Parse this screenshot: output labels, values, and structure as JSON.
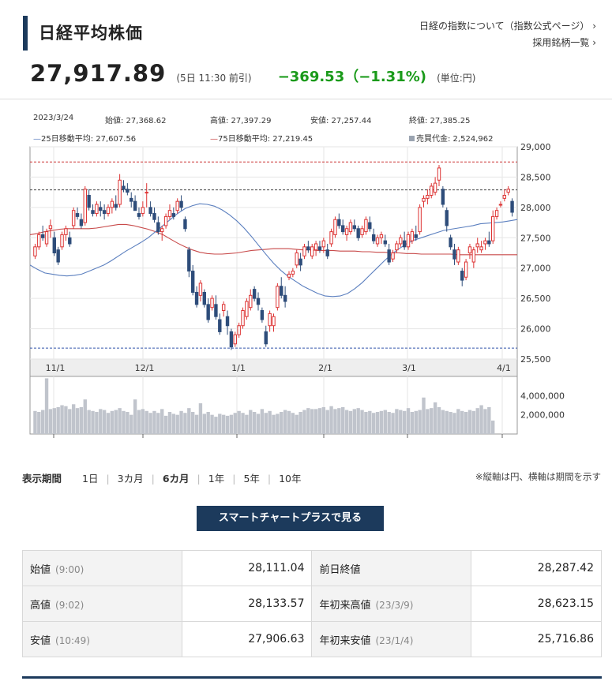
{
  "header": {
    "title": "日経平均株価",
    "link_index": "日経の指数について（指数公式ページ）",
    "link_constituents": "採用銘柄一覧",
    "price": "27,917.89",
    "price_time": "(5日 11:30 前引)",
    "change": "−369.53（−1.31%)",
    "unit": "(単位:円)"
  },
  "chart_info": {
    "date": "2023/3/24",
    "open": "始値: 27,368.62",
    "high": "高値: 27,397.29",
    "low": "安値: 27,257.44",
    "close": "終値: 27,385.25",
    "ma25": "25日移動平均: 27,607.56",
    "ma75": "75日移動平均: 27,219.45",
    "volume": "売買代金: 2,524,962"
  },
  "chart_data": {
    "type": "candlestick",
    "y_ticks": [
      "29,000",
      "28,500",
      "28,000",
      "27,500",
      "27,000",
      "26,500",
      "26,000",
      "25,500"
    ],
    "y_range": [
      25500,
      29000
    ],
    "x_ticks": [
      "11/1",
      "12/1",
      "1/1",
      "2/1",
      "3/1",
      "4/1"
    ],
    "vol_ticks": [
      "4,000,000",
      "2,000,000"
    ],
    "vol_range": [
      0,
      6000000
    ],
    "ref_lines": [
      28750,
      28290,
      25680
    ],
    "colors": {
      "up": "#d33",
      "down": "#2e4d7a",
      "ma25": "#5b7fbf",
      "ma75": "#c84a4a",
      "volume": "#c0c4cc",
      "ref_red": "#c33",
      "ref_dark": "#444",
      "ref_blue": "#3355aa"
    },
    "candles": [
      [
        27200,
        27400,
        27150,
        27350
      ],
      [
        27350,
        27600,
        27300,
        27550
      ],
      [
        27550,
        27700,
        27450,
        27500
      ],
      [
        27400,
        27650,
        27350,
        27600
      ],
      [
        27650,
        27800,
        27500,
        27700
      ],
      [
        27500,
        27600,
        27200,
        27250
      ],
      [
        27300,
        27350,
        27050,
        27100
      ],
      [
        27350,
        27600,
        27300,
        27550
      ],
      [
        27550,
        27700,
        27450,
        27650
      ],
      [
        27500,
        27600,
        27350,
        27400
      ],
      [
        27700,
        28000,
        27650,
        27950
      ],
      [
        27900,
        28000,
        27800,
        27850
      ],
      [
        27800,
        27900,
        27650,
        27700
      ],
      [
        27750,
        28350,
        27700,
        28300
      ],
      [
        28200,
        28300,
        27950,
        28000
      ],
      [
        27950,
        28050,
        27850,
        27900
      ],
      [
        27900,
        28100,
        27850,
        28050
      ],
      [
        28000,
        28100,
        27850,
        27950
      ],
      [
        27950,
        28050,
        27800,
        27900
      ],
      [
        27900,
        28050,
        27850,
        28000
      ],
      [
        28000,
        28150,
        27900,
        28100
      ],
      [
        28050,
        28200,
        27950,
        28000
      ],
      [
        28050,
        28550,
        28000,
        28450
      ],
      [
        28350,
        28450,
        28250,
        28300
      ],
      [
        28300,
        28400,
        28200,
        28250
      ],
      [
        28150,
        28250,
        28000,
        28100
      ],
      [
        28100,
        28200,
        27950,
        27950
      ],
      [
        27900,
        28000,
        27800,
        27850
      ],
      [
        27900,
        28100,
        27850,
        28000
      ],
      [
        28250,
        28400,
        28000,
        28250
      ],
      [
        28000,
        28100,
        27850,
        27900
      ],
      [
        27900,
        28000,
        27750,
        27800
      ],
      [
        27750,
        27850,
        27550,
        27600
      ],
      [
        27600,
        27700,
        27450,
        27650
      ],
      [
        27700,
        27900,
        27650,
        27850
      ],
      [
        27850,
        28050,
        27800,
        27950
      ],
      [
        27900,
        28000,
        27800,
        27850
      ],
      [
        27950,
        28150,
        27900,
        28100
      ],
      [
        28100,
        28200,
        27950,
        28000
      ],
      [
        27800,
        27850,
        27600,
        27650
      ],
      [
        27300,
        27350,
        26850,
        26950
      ],
      [
        26950,
        27050,
        26550,
        26600
      ],
      [
        26600,
        26700,
        26350,
        26400
      ],
      [
        26550,
        26800,
        26450,
        26750
      ],
      [
        26600,
        26650,
        26350,
        26400
      ],
      [
        26400,
        26500,
        26100,
        26150
      ],
      [
        26350,
        26550,
        26300,
        26500
      ],
      [
        26400,
        26550,
        26150,
        26200
      ],
      [
        26150,
        26250,
        25900,
        25950
      ],
      [
        26300,
        26450,
        26200,
        26400
      ],
      [
        26200,
        26300,
        25900,
        26050
      ],
      [
        25950,
        26000,
        25650,
        25700
      ],
      [
        25750,
        25950,
        25700,
        25900
      ],
      [
        25900,
        26100,
        25850,
        26050
      ],
      [
        26050,
        26350,
        26000,
        26300
      ],
      [
        26200,
        26500,
        26150,
        26450
      ],
      [
        26350,
        26650,
        26300,
        26550
      ],
      [
        26650,
        26700,
        26450,
        26500
      ],
      [
        26500,
        26600,
        26300,
        26400
      ],
      [
        26300,
        26350,
        26100,
        26150
      ],
      [
        25950,
        26050,
        25700,
        25750
      ],
      [
        26050,
        26300,
        25950,
        26250
      ],
      [
        26050,
        26250,
        25950,
        26200
      ],
      [
        26350,
        26750,
        26300,
        26700
      ],
      [
        26700,
        26850,
        26500,
        26550
      ],
      [
        26550,
        26700,
        26350,
        26450
      ],
      [
        26850,
        26950,
        26800,
        26900
      ],
      [
        26900,
        27000,
        26850,
        26950
      ],
      [
        27050,
        27300,
        27000,
        27250
      ],
      [
        27150,
        27250,
        26950,
        27050
      ],
      [
        27200,
        27400,
        27150,
        27350
      ],
      [
        27350,
        27450,
        27250,
        27300
      ],
      [
        27200,
        27400,
        27150,
        27350
      ],
      [
        27300,
        27450,
        27200,
        27400
      ],
      [
        27350,
        27450,
        27250,
        27300
      ],
      [
        27350,
        27500,
        27250,
        27450
      ],
      [
        27300,
        27400,
        27150,
        27200
      ],
      [
        27400,
        27650,
        27350,
        27600
      ],
      [
        27550,
        27850,
        27500,
        27800
      ],
      [
        27800,
        27900,
        27650,
        27700
      ],
      [
        27700,
        27800,
        27550,
        27600
      ],
      [
        27550,
        27700,
        27450,
        27650
      ],
      [
        27600,
        27800,
        27550,
        27750
      ],
      [
        27700,
        27800,
        27600,
        27650
      ],
      [
        27650,
        27700,
        27450,
        27500
      ],
      [
        27550,
        27700,
        27500,
        27650
      ],
      [
        27600,
        27850,
        27550,
        27800
      ],
      [
        27750,
        27850,
        27600,
        27650
      ],
      [
        27550,
        27650,
        27400,
        27450
      ],
      [
        27400,
        27550,
        27350,
        27500
      ],
      [
        27500,
        27600,
        27400,
        27550
      ],
      [
        27450,
        27550,
        27350,
        27400
      ],
      [
        27300,
        27400,
        27050,
        27100
      ],
      [
        27150,
        27300,
        27100,
        27250
      ],
      [
        27300,
        27450,
        27250,
        27400
      ],
      [
        27400,
        27550,
        27350,
        27500
      ],
      [
        27450,
        27600,
        27300,
        27350
      ],
      [
        27350,
        27600,
        27300,
        27550
      ],
      [
        27450,
        27650,
        27400,
        27600
      ],
      [
        27550,
        27700,
        27450,
        27500
      ],
      [
        27600,
        28050,
        27550,
        28000
      ],
      [
        28100,
        28200,
        28000,
        28150
      ],
      [
        28150,
        28300,
        28050,
        28200
      ],
      [
        28200,
        28400,
        28150,
        28350
      ],
      [
        28250,
        28500,
        28200,
        28400
      ],
      [
        28450,
        28700,
        28350,
        28650
      ],
      [
        28300,
        28350,
        28000,
        28050
      ],
      [
        27950,
        28000,
        27600,
        27700
      ],
      [
        27500,
        27550,
        27300,
        27350
      ],
      [
        27300,
        27400,
        27050,
        27150
      ],
      [
        27100,
        27350,
        27050,
        27300
      ],
      [
        26950,
        27000,
        26700,
        26800
      ],
      [
        26850,
        27150,
        26800,
        27100
      ],
      [
        27250,
        27400,
        27150,
        27350
      ],
      [
        27100,
        27350,
        27000,
        27300
      ],
      [
        27350,
        27500,
        27250,
        27400
      ],
      [
        27300,
        27450,
        27250,
        27350
      ],
      [
        27400,
        27500,
        27300,
        27450
      ],
      [
        27450,
        27600,
        27350,
        27400
      ],
      [
        27450,
        27950,
        27400,
        27850
      ],
      [
        27850,
        28000,
        27800,
        27950
      ],
      [
        28050,
        28100,
        28000,
        28050
      ],
      [
        28150,
        28300,
        28100,
        28200
      ],
      [
        28250,
        28350,
        28200,
        28300
      ],
      [
        28100,
        28150,
        27850,
        27920
      ]
    ],
    "ma25": [
      27050,
      26980,
      26920,
      26900,
      26880,
      26870,
      26880,
      26900,
      26950,
      27000,
      27050,
      27120,
      27200,
      27280,
      27350,
      27420,
      27500,
      27600,
      27700,
      27800,
      27900,
      27980,
      28030,
      28060,
      28050,
      28020,
      27960,
      27880,
      27780,
      27660,
      27520,
      27370,
      27220,
      27080,
      26960,
      26860,
      26780,
      26700,
      26640,
      26580,
      26540,
      26530,
      26540,
      26580,
      26660,
      26760,
      26880,
      27000,
      27120,
      27230,
      27320,
      27400,
      27460,
      27500,
      27540,
      27580,
      27620,
      27640,
      27660,
      27680,
      27700,
      27730,
      27740,
      27750,
      27760,
      27780,
      27800
    ],
    "ma75": [
      27550,
      27570,
      27600,
      27620,
      27640,
      27650,
      27650,
      27650,
      27650,
      27660,
      27680,
      27700,
      27720,
      27720,
      27700,
      27670,
      27640,
      27600,
      27550,
      27480,
      27410,
      27350,
      27300,
      27260,
      27240,
      27230,
      27230,
      27240,
      27250,
      27270,
      27290,
      27300,
      27310,
      27320,
      27320,
      27320,
      27310,
      27300,
      27300,
      27290,
      27290,
      27290,
      27280,
      27280,
      27280,
      27270,
      27270,
      27260,
      27260,
      27250,
      27250,
      27240,
      27240,
      27230,
      27230,
      27230,
      27230,
      27230,
      27220,
      27220,
      27220,
      27220,
      27220,
      27220,
      27220,
      27220,
      27220
    ],
    "volume": [
      2400000,
      2300000,
      2500000,
      5800000,
      2600000,
      2700000,
      2800000,
      3000000,
      2900000,
      2600000,
      3100000,
      2700000,
      2800000,
      3600000,
      2500000,
      2400000,
      2300000,
      2600000,
      2500000,
      2200000,
      2400000,
      2500000,
      2700000,
      2400000,
      2300000,
      2000000,
      3600000,
      2500000,
      2600000,
      2400000,
      2200000,
      2400000,
      2200000,
      2600000,
      1900000,
      2300000,
      2100000,
      2000000,
      2400000,
      2200000,
      2700000,
      2300000,
      2000000,
      3200000,
      2100000,
      2300000,
      2000000,
      1800000,
      2100000,
      2000000,
      1900000,
      2000000,
      2200000,
      2400000,
      2200000,
      2000000,
      2500000,
      2300000,
      2100000,
      2600000,
      2200000,
      2400000,
      2000000,
      2100000,
      2300000,
      2500000,
      2400000,
      2200000,
      2000000,
      2300000,
      2500000,
      2700000,
      2600000,
      2600000,
      2700000,
      2800000,
      2500000,
      2900000,
      2600000,
      2700000,
      2800000,
      2500000,
      2400000,
      2600000,
      2700000,
      2500000,
      2300000,
      2400000,
      2200000,
      2300000,
      2400000,
      2500000,
      2300000,
      2200000,
      2600000,
      2500000,
      2400000,
      2700000,
      2300000,
      2400000,
      2500000,
      3800000,
      2600000,
      2700000,
      3300000,
      2800000,
      2500000,
      2400000,
      2300000,
      2200000,
      2600000,
      2400000,
      2300000,
      2500000,
      2400000,
      2700000,
      3000000,
      2600000,
      2800000,
      1400000
    ]
  },
  "period": {
    "label": "表示期間",
    "options": [
      "1日",
      "3カ月",
      "6カ月",
      "1年",
      "5年",
      "10年"
    ],
    "active": "6カ月",
    "note": "※縦軸は円、横軸は期間を示す"
  },
  "smart_button": "スマートチャートプラスで見る",
  "stats": [
    {
      "k": "始値",
      "sub": "(9:00)",
      "v": "28,111.04",
      "k2": "前日終値",
      "sub2": "",
      "v2": "28,287.42"
    },
    {
      "k": "高値",
      "sub": "(9:02)",
      "v": "28,133.57",
      "k2": "年初来高値",
      "sub2": "(23/3/9)",
      "v2": "28,623.15"
    },
    {
      "k": "安値",
      "sub": "(10:49)",
      "v": "27,906.63",
      "k2": "年初来安値",
      "sub2": "(23/1/4)",
      "v2": "25,716.86"
    }
  ]
}
